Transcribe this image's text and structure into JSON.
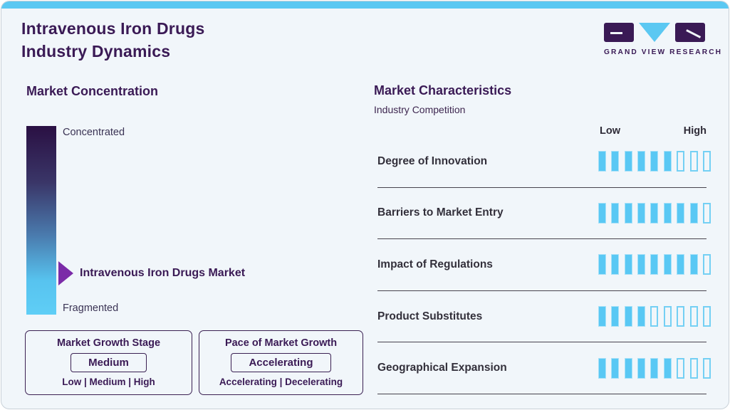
{
  "header": {
    "title_line1": "Intravenous Iron Drugs",
    "title_line2": "Industry Dynamics",
    "logo_text": "GRAND VIEW RESEARCH"
  },
  "market_concentration": {
    "heading": "Market Concentration",
    "scale_top": "Concentrated",
    "scale_bottom": "Fragmented",
    "pointer_label": "Intravenous Iron Drugs Market"
  },
  "growth_boxes": [
    {
      "title": "Market Growth Stage",
      "value": "Medium",
      "options": "Low | Medium | High"
    },
    {
      "title": "Pace of Market Growth",
      "value": "Accelerating",
      "options": "Accelerating | Decelerating"
    }
  ],
  "market_characteristics": {
    "heading": "Market Characteristics",
    "subheading": "Industry Competition",
    "scale_low": "Low",
    "scale_high": "High",
    "rows": [
      {
        "label": "Degree of Innovation",
        "filled": 6,
        "total": 9
      },
      {
        "label": "Barriers to Market Entry",
        "filled": 8,
        "total": 9
      },
      {
        "label": "Impact of Regulations",
        "filled": 8,
        "total": 9
      },
      {
        "label": "Product Substitutes",
        "filled": 4,
        "total": 9
      },
      {
        "label": "Geographical Expansion",
        "filled": 6,
        "total": 9
      }
    ]
  },
  "chart_data": {
    "type": "bar",
    "title": "Market Characteristics - Industry Competition",
    "categories": [
      "Degree of Innovation",
      "Barriers to Market Entry",
      "Impact of Regulations",
      "Product Substitutes",
      "Geographical Expansion"
    ],
    "values": [
      6,
      8,
      8,
      4,
      6
    ],
    "value_range": [
      0,
      9
    ],
    "scale_labels": [
      "Low",
      "High"
    ],
    "legend_position": "none",
    "concentration_scale": {
      "top": "Concentrated",
      "bottom": "Fragmented",
      "marker_label": "Intravenous Iron Drugs Market",
      "marker_position_pct_from_top": 78
    }
  },
  "colors": {
    "topbar_blue": "#5BC8F2",
    "brand_purple": "#3A1A55",
    "arrow_purple": "#7B2BA8",
    "segment_fill_blue": "#59C8F4",
    "segment_empty_border": "#74D0F4",
    "gradient_top": "#2A1043",
    "gradient_bottom": "#5FCEF6",
    "card_background": "#F1F6FA"
  }
}
